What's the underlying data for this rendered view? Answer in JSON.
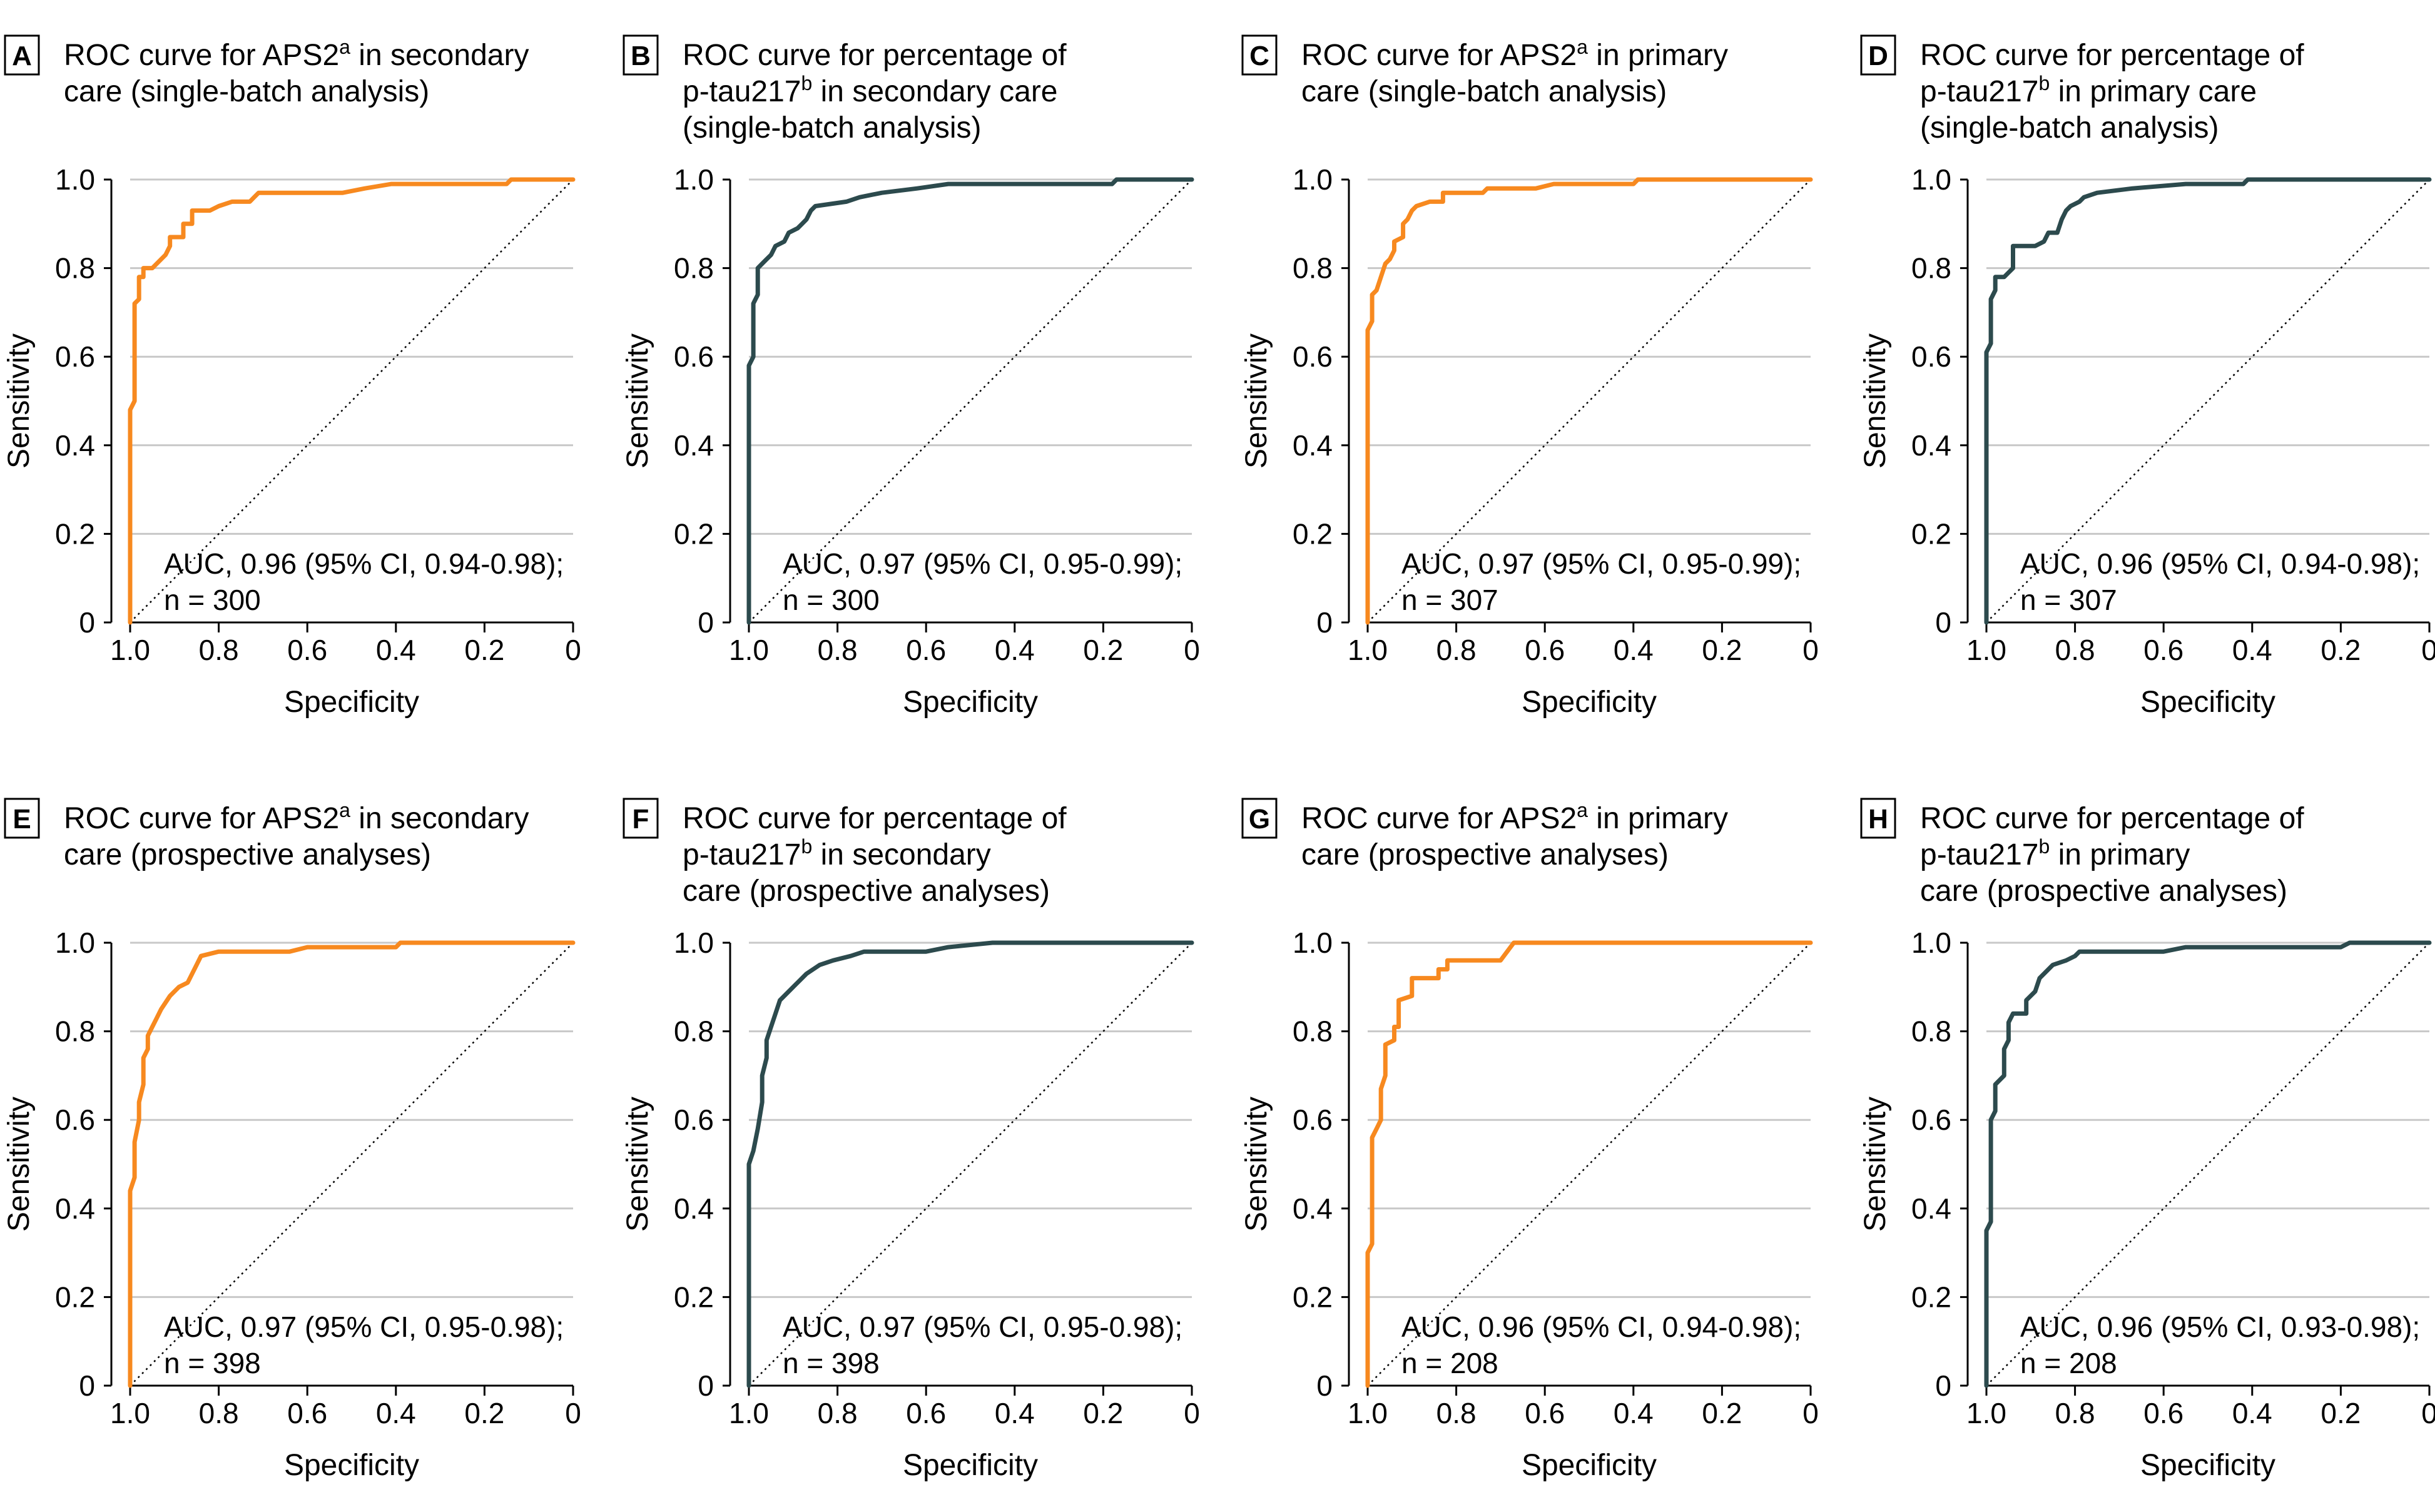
{
  "colors": {
    "apps2": "#f7891f",
    "ptau": "#2c4a4d",
    "grid": "#c8c8c8",
    "axis": "#000000"
  },
  "axis_text": {
    "xlabel": "Specificity",
    "ylabel": "Sensitivity"
  },
  "chart_data": [
    {
      "panel": "A",
      "type": "line",
      "series_color": "apps2",
      "title_lines": [
        [
          "ROC curve for APS2",
          "a",
          " in secondary"
        ],
        [
          "care (single-batch analysis)"
        ]
      ],
      "annotation": [
        "AUC, 0.96 (95% CI, 0.94-0.98);",
        "n = 300"
      ],
      "xlabel": "Specificity",
      "ylabel": "Sensitivity",
      "xlim": [
        1.0,
        0
      ],
      "ylim": [
        0,
        1.0
      ],
      "xticks": [
        "1.0",
        "0.8",
        "0.6",
        "0.4",
        "0.2",
        "0"
      ],
      "yticks": [
        "0",
        "0.2",
        "0.4",
        "0.6",
        "0.8",
        "1.0"
      ],
      "curve": [
        [
          1,
          0
        ],
        [
          1,
          0.48
        ],
        [
          0.99,
          0.5
        ],
        [
          0.99,
          0.72
        ],
        [
          0.98,
          0.73
        ],
        [
          0.98,
          0.78
        ],
        [
          0.97,
          0.78
        ],
        [
          0.97,
          0.8
        ],
        [
          0.95,
          0.8
        ],
        [
          0.94,
          0.81
        ],
        [
          0.93,
          0.82
        ],
        [
          0.92,
          0.83
        ],
        [
          0.91,
          0.85
        ],
        [
          0.91,
          0.87
        ],
        [
          0.88,
          0.87
        ],
        [
          0.88,
          0.9
        ],
        [
          0.86,
          0.9
        ],
        [
          0.86,
          0.93
        ],
        [
          0.82,
          0.93
        ],
        [
          0.8,
          0.94
        ],
        [
          0.77,
          0.95
        ],
        [
          0.73,
          0.95
        ],
        [
          0.72,
          0.96
        ],
        [
          0.71,
          0.97
        ],
        [
          0.52,
          0.97
        ],
        [
          0.47,
          0.98
        ],
        [
          0.41,
          0.99
        ],
        [
          0.15,
          0.99
        ],
        [
          0.14,
          1.0
        ],
        [
          0,
          1.0
        ]
      ]
    },
    {
      "panel": "B",
      "type": "line",
      "series_color": "ptau",
      "title_lines": [
        [
          "ROC curve for percentage of"
        ],
        [
          "p-tau217",
          "b",
          " in secondary care"
        ],
        [
          "(single-batch analysis)"
        ]
      ],
      "annotation": [
        "AUC, 0.97 (95% CI, 0.95-0.99);",
        "n = 300"
      ],
      "xlabel": "Specificity",
      "ylabel": "Sensitivity",
      "xlim": [
        1.0,
        0
      ],
      "ylim": [
        0,
        1.0
      ],
      "xticks": [
        "1.0",
        "0.8",
        "0.6",
        "0.4",
        "0.2",
        "0"
      ],
      "yticks": [
        "0",
        "0.2",
        "0.4",
        "0.6",
        "0.8",
        "1.0"
      ],
      "curve": [
        [
          1,
          0
        ],
        [
          1,
          0.58
        ],
        [
          0.99,
          0.6
        ],
        [
          0.99,
          0.72
        ],
        [
          0.98,
          0.74
        ],
        [
          0.98,
          0.8
        ],
        [
          0.97,
          0.81
        ],
        [
          0.96,
          0.82
        ],
        [
          0.95,
          0.83
        ],
        [
          0.94,
          0.85
        ],
        [
          0.92,
          0.86
        ],
        [
          0.91,
          0.88
        ],
        [
          0.89,
          0.89
        ],
        [
          0.88,
          0.9
        ],
        [
          0.87,
          0.91
        ],
        [
          0.86,
          0.93
        ],
        [
          0.85,
          0.94
        ],
        [
          0.78,
          0.95
        ],
        [
          0.75,
          0.96
        ],
        [
          0.7,
          0.97
        ],
        [
          0.62,
          0.98
        ],
        [
          0.55,
          0.99
        ],
        [
          0.18,
          0.99
        ],
        [
          0.17,
          1.0
        ],
        [
          0,
          1.0
        ]
      ]
    },
    {
      "panel": "C",
      "type": "line",
      "series_color": "apps2",
      "title_lines": [
        [
          "ROC curve for APS2",
          "a",
          " in primary"
        ],
        [
          "care (single-batch analysis)"
        ]
      ],
      "annotation": [
        "AUC, 0.97 (95% CI, 0.95-0.99);",
        "n = 307"
      ],
      "xlabel": "Specificity",
      "ylabel": "Sensitivity",
      "xlim": [
        1.0,
        0
      ],
      "ylim": [
        0,
        1.0
      ],
      "xticks": [
        "1.0",
        "0.8",
        "0.6",
        "0.4",
        "0.2",
        "0"
      ],
      "yticks": [
        "0",
        "0.2",
        "0.4",
        "0.6",
        "0.8",
        "1.0"
      ],
      "curve": [
        [
          1,
          0
        ],
        [
          1,
          0.66
        ],
        [
          0.99,
          0.68
        ],
        [
          0.99,
          0.74
        ],
        [
          0.98,
          0.75
        ],
        [
          0.97,
          0.78
        ],
        [
          0.96,
          0.81
        ],
        [
          0.95,
          0.82
        ],
        [
          0.94,
          0.84
        ],
        [
          0.94,
          0.86
        ],
        [
          0.92,
          0.87
        ],
        [
          0.92,
          0.9
        ],
        [
          0.91,
          0.91
        ],
        [
          0.9,
          0.93
        ],
        [
          0.89,
          0.94
        ],
        [
          0.86,
          0.95
        ],
        [
          0.83,
          0.95
        ],
        [
          0.83,
          0.97
        ],
        [
          0.74,
          0.97
        ],
        [
          0.73,
          0.98
        ],
        [
          0.62,
          0.98
        ],
        [
          0.58,
          0.99
        ],
        [
          0.4,
          0.99
        ],
        [
          0.39,
          1.0
        ],
        [
          0,
          1.0
        ]
      ]
    },
    {
      "panel": "D",
      "type": "line",
      "series_color": "ptau",
      "title_lines": [
        [
          "ROC curve for percentage of"
        ],
        [
          "p-tau217",
          "b",
          " in primary care"
        ],
        [
          "(single-batch analysis)"
        ]
      ],
      "annotation": [
        "AUC, 0.96 (95% CI, 0.94-0.98);",
        "n = 307"
      ],
      "xlabel": "Specificity",
      "ylabel": "Sensitivity",
      "xlim": [
        1.0,
        0
      ],
      "ylim": [
        0,
        1.0
      ],
      "xticks": [
        "1.0",
        "0.8",
        "0.6",
        "0.4",
        "0.2",
        "0"
      ],
      "yticks": [
        "0",
        "0.2",
        "0.4",
        "0.6",
        "0.8",
        "1.0"
      ],
      "curve": [
        [
          1,
          0
        ],
        [
          1,
          0.61
        ],
        [
          0.99,
          0.63
        ],
        [
          0.99,
          0.73
        ],
        [
          0.98,
          0.75
        ],
        [
          0.98,
          0.78
        ],
        [
          0.96,
          0.78
        ],
        [
          0.95,
          0.79
        ],
        [
          0.94,
          0.8
        ],
        [
          0.94,
          0.85
        ],
        [
          0.89,
          0.85
        ],
        [
          0.87,
          0.86
        ],
        [
          0.86,
          0.88
        ],
        [
          0.84,
          0.88
        ],
        [
          0.83,
          0.91
        ],
        [
          0.82,
          0.93
        ],
        [
          0.81,
          0.94
        ],
        [
          0.79,
          0.95
        ],
        [
          0.78,
          0.96
        ],
        [
          0.75,
          0.97
        ],
        [
          0.67,
          0.98
        ],
        [
          0.55,
          0.99
        ],
        [
          0.42,
          0.99
        ],
        [
          0.41,
          1.0
        ],
        [
          0,
          1.0
        ]
      ]
    },
    {
      "panel": "E",
      "type": "line",
      "series_color": "apps2",
      "title_lines": [
        [
          "ROC curve for APS2",
          "a",
          " in secondary"
        ],
        [
          "care (prospective analyses)"
        ]
      ],
      "annotation": [
        "AUC, 0.97 (95% CI, 0.95-0.98);",
        "n = 398"
      ],
      "xlabel": "Specificity",
      "ylabel": "Sensitivity",
      "xlim": [
        1.0,
        0
      ],
      "ylim": [
        0,
        1.0
      ],
      "xticks": [
        "1.0",
        "0.8",
        "0.6",
        "0.4",
        "0.2",
        "0"
      ],
      "yticks": [
        "0",
        "0.2",
        "0.4",
        "0.6",
        "0.8",
        "1.0"
      ],
      "curve": [
        [
          1,
          0
        ],
        [
          1,
          0.44
        ],
        [
          0.99,
          0.47
        ],
        [
          0.99,
          0.55
        ],
        [
          0.98,
          0.6
        ],
        [
          0.98,
          0.64
        ],
        [
          0.97,
          0.68
        ],
        [
          0.97,
          0.74
        ],
        [
          0.96,
          0.76
        ],
        [
          0.96,
          0.79
        ],
        [
          0.95,
          0.81
        ],
        [
          0.94,
          0.83
        ],
        [
          0.93,
          0.85
        ],
        [
          0.91,
          0.88
        ],
        [
          0.89,
          0.9
        ],
        [
          0.87,
          0.91
        ],
        [
          0.86,
          0.93
        ],
        [
          0.85,
          0.95
        ],
        [
          0.84,
          0.97
        ],
        [
          0.8,
          0.98
        ],
        [
          0.64,
          0.98
        ],
        [
          0.6,
          0.99
        ],
        [
          0.4,
          0.99
        ],
        [
          0.39,
          1.0
        ],
        [
          0.06,
          1.0
        ],
        [
          0.02,
          1.0
        ],
        [
          0,
          1.0
        ]
      ]
    },
    {
      "panel": "F",
      "type": "line",
      "series_color": "ptau",
      "title_lines": [
        [
          "ROC curve for percentage of"
        ],
        [
          "p-tau217",
          "b",
          " in secondary"
        ],
        [
          "care (prospective analyses)"
        ]
      ],
      "annotation": [
        "AUC, 0.97 (95% CI, 0.95-0.98);",
        "n = 398"
      ],
      "xlabel": "Specificity",
      "ylabel": "Sensitivity",
      "xlim": [
        1.0,
        0
      ],
      "ylim": [
        0,
        1.0
      ],
      "xticks": [
        "1.0",
        "0.8",
        "0.6",
        "0.4",
        "0.2",
        "0"
      ],
      "yticks": [
        "0",
        "0.2",
        "0.4",
        "0.6",
        "0.8",
        "1.0"
      ],
      "curve": [
        [
          1,
          0
        ],
        [
          1,
          0.5
        ],
        [
          0.99,
          0.53
        ],
        [
          0.98,
          0.58
        ],
        [
          0.97,
          0.64
        ],
        [
          0.97,
          0.7
        ],
        [
          0.96,
          0.74
        ],
        [
          0.96,
          0.78
        ],
        [
          0.95,
          0.81
        ],
        [
          0.94,
          0.84
        ],
        [
          0.93,
          0.87
        ],
        [
          0.91,
          0.89
        ],
        [
          0.89,
          0.91
        ],
        [
          0.87,
          0.93
        ],
        [
          0.84,
          0.95
        ],
        [
          0.81,
          0.96
        ],
        [
          0.77,
          0.97
        ],
        [
          0.74,
          0.98
        ],
        [
          0.6,
          0.98
        ],
        [
          0.55,
          0.99
        ],
        [
          0.45,
          1.0
        ],
        [
          0,
          1.0
        ]
      ]
    },
    {
      "panel": "G",
      "type": "line",
      "series_color": "apps2",
      "title_lines": [
        [
          "ROC curve for APS2",
          "a",
          " in primary"
        ],
        [
          "care (prospective analyses)"
        ]
      ],
      "annotation": [
        "AUC, 0.96 (95% CI, 0.94-0.98);",
        "n = 208"
      ],
      "xlabel": "Specificity",
      "ylabel": "Sensitivity",
      "xlim": [
        1.0,
        0
      ],
      "ylim": [
        0,
        1.0
      ],
      "xticks": [
        "1.0",
        "0.8",
        "0.6",
        "0.4",
        "0.2",
        "0"
      ],
      "yticks": [
        "0",
        "0.2",
        "0.4",
        "0.6",
        "0.8",
        "1.0"
      ],
      "curve": [
        [
          1,
          0
        ],
        [
          1,
          0.3
        ],
        [
          0.99,
          0.32
        ],
        [
          0.99,
          0.56
        ],
        [
          0.98,
          0.58
        ],
        [
          0.97,
          0.6
        ],
        [
          0.97,
          0.67
        ],
        [
          0.96,
          0.7
        ],
        [
          0.96,
          0.77
        ],
        [
          0.94,
          0.78
        ],
        [
          0.94,
          0.81
        ],
        [
          0.93,
          0.81
        ],
        [
          0.93,
          0.87
        ],
        [
          0.9,
          0.88
        ],
        [
          0.9,
          0.92
        ],
        [
          0.84,
          0.92
        ],
        [
          0.84,
          0.94
        ],
        [
          0.82,
          0.94
        ],
        [
          0.82,
          0.96
        ],
        [
          0.7,
          0.96
        ],
        [
          0.67,
          1.0
        ],
        [
          0,
          1.0
        ]
      ]
    },
    {
      "panel": "H",
      "type": "line",
      "series_color": "ptau",
      "title_lines": [
        [
          "ROC curve for percentage of"
        ],
        [
          "p-tau217",
          "b",
          " in primary"
        ],
        [
          "care (prospective analyses)"
        ]
      ],
      "annotation": [
        "AUC, 0.96 (95% CI, 0.93-0.98);",
        "n = 208"
      ],
      "xlabel": "Specificity",
      "ylabel": "Sensitivity",
      "xlim": [
        1.0,
        0
      ],
      "ylim": [
        0,
        1.0
      ],
      "xticks": [
        "1.0",
        "0.8",
        "0.6",
        "0.4",
        "0.2",
        "0"
      ],
      "yticks": [
        "0",
        "0.2",
        "0.4",
        "0.6",
        "0.8",
        "1.0"
      ],
      "curve": [
        [
          1,
          0
        ],
        [
          1,
          0.35
        ],
        [
          0.99,
          0.37
        ],
        [
          0.99,
          0.6
        ],
        [
          0.98,
          0.62
        ],
        [
          0.98,
          0.68
        ],
        [
          0.96,
          0.7
        ],
        [
          0.96,
          0.76
        ],
        [
          0.95,
          0.78
        ],
        [
          0.95,
          0.82
        ],
        [
          0.94,
          0.84
        ],
        [
          0.91,
          0.84
        ],
        [
          0.91,
          0.87
        ],
        [
          0.89,
          0.89
        ],
        [
          0.88,
          0.92
        ],
        [
          0.87,
          0.93
        ],
        [
          0.86,
          0.94
        ],
        [
          0.85,
          0.95
        ],
        [
          0.82,
          0.96
        ],
        [
          0.8,
          0.97
        ],
        [
          0.79,
          0.98
        ],
        [
          0.6,
          0.98
        ],
        [
          0.55,
          0.99
        ],
        [
          0.2,
          0.99
        ],
        [
          0.18,
          1.0
        ],
        [
          0,
          1.0
        ]
      ]
    }
  ]
}
